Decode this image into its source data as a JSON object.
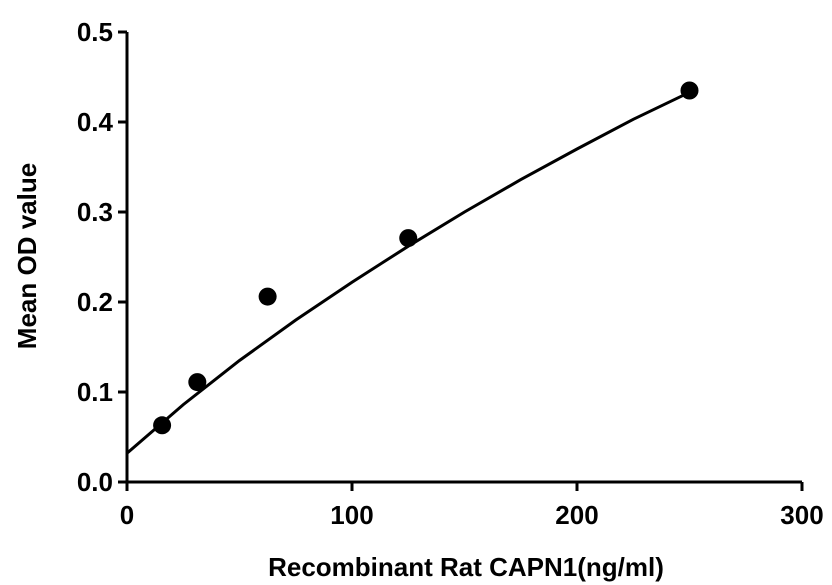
{
  "chart_data": {
    "type": "scatter",
    "xlabel": "Recombinant Rat CAPN1(ng/ml)",
    "ylabel": "Mean OD value",
    "xlim": [
      0,
      300
    ],
    "ylim": [
      0,
      0.5
    ],
    "x_ticks": [
      0,
      100,
      200,
      300
    ],
    "y_ticks": [
      0.0,
      0.1,
      0.2,
      0.3,
      0.4,
      0.5
    ],
    "x_tick_labels": [
      "0",
      "100",
      "200",
      "300"
    ],
    "y_tick_labels": [
      "0.0",
      "0.1",
      "0.2",
      "0.3",
      "0.4",
      "0.5"
    ],
    "grid": false,
    "series": [
      {
        "points": [
          {
            "x": 15.6,
            "y": 0.063
          },
          {
            "x": 31.25,
            "y": 0.111
          },
          {
            "x": 62.5,
            "y": 0.206
          },
          {
            "x": 125,
            "y": 0.271
          },
          {
            "x": 250,
            "y": 0.435
          }
        ],
        "marker": "circle",
        "color": "#000000"
      }
    ],
    "fit_curve": {
      "type": "quadratic",
      "points": [
        {
          "x": 0,
          "y": 0.032
        },
        {
          "x": 25,
          "y": 0.086
        },
        {
          "x": 50,
          "y": 0.135
        },
        {
          "x": 75,
          "y": 0.18
        },
        {
          "x": 100,
          "y": 0.222
        },
        {
          "x": 125,
          "y": 0.262
        },
        {
          "x": 150,
          "y": 0.3
        },
        {
          "x": 175,
          "y": 0.336
        },
        {
          "x": 200,
          "y": 0.37
        },
        {
          "x": 225,
          "y": 0.403
        },
        {
          "x": 250,
          "y": 0.433
        }
      ],
      "color": "#000000"
    }
  }
}
